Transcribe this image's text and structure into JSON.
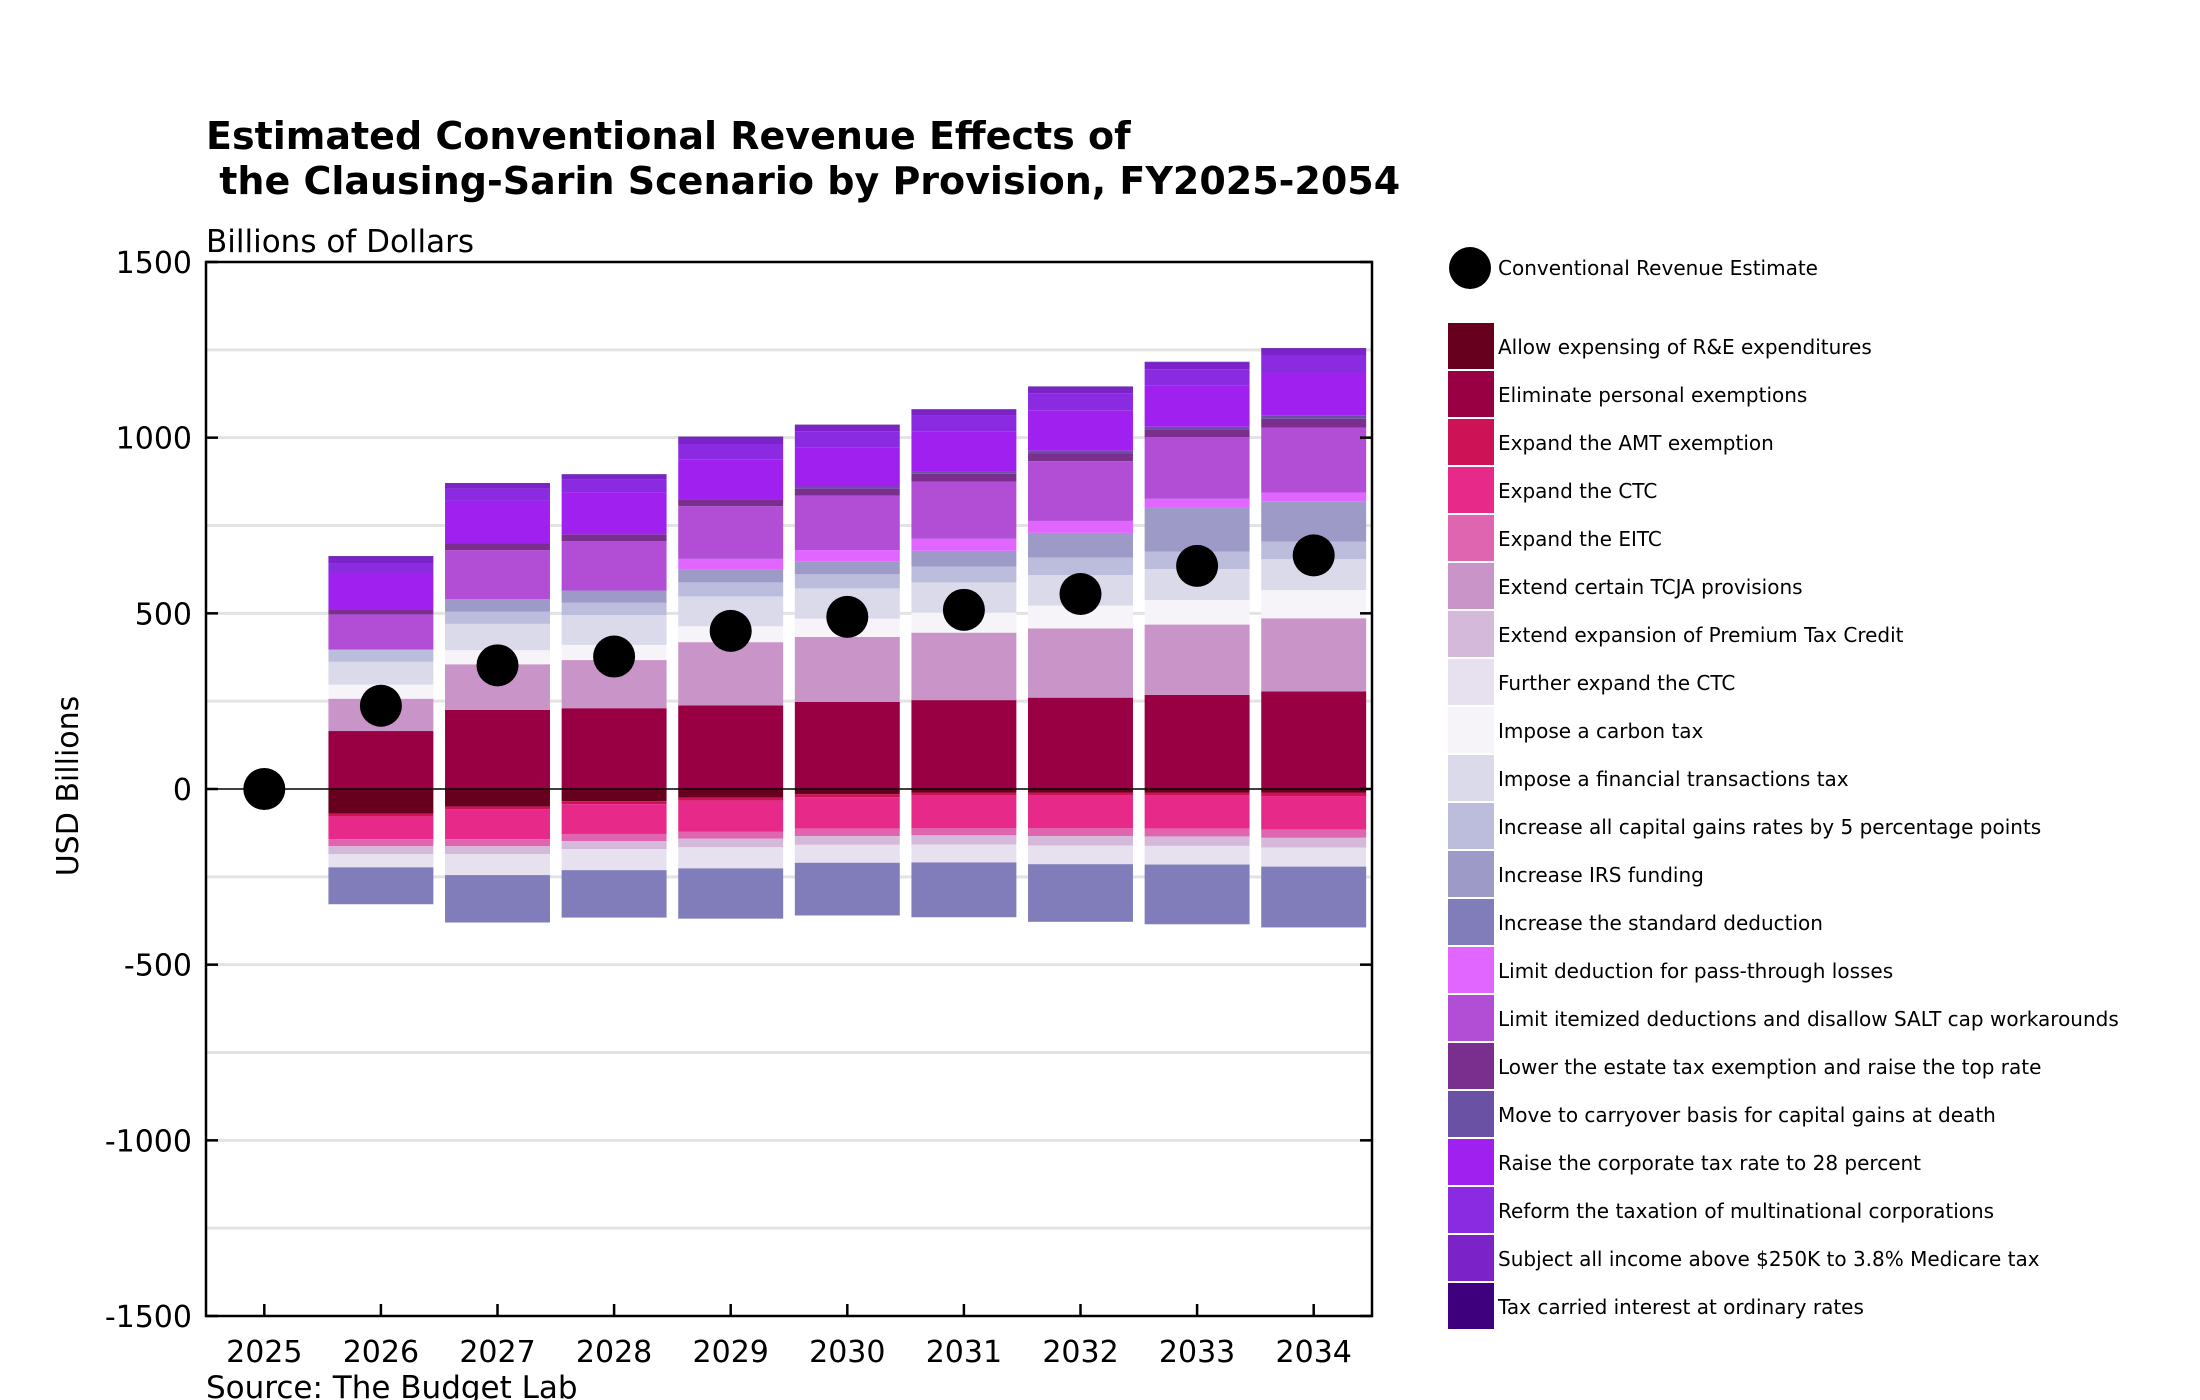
{
  "chart_data": {
    "type": "bar",
    "title_line1": "Estimated Conventional Revenue Effects of",
    "title_line2": " the Clausing-Sarin Scenario by Provision, FY2025-2054",
    "subtitle": "Billions of Dollars",
    "ylabel": "USD Billions",
    "source": "Source: The Budget Lab",
    "ylim": [
      -1500,
      1500
    ],
    "yticks": [
      -1500,
      -1000,
      -500,
      0,
      500,
      1000,
      1500
    ],
    "ytick_labels": [
      "-1500",
      "-1000",
      "-500",
      "0",
      "500",
      "1000",
      "1500"
    ],
    "grid": true,
    "legend_position": "right",
    "categories": [
      "2025",
      "2026",
      "2027",
      "2028",
      "2029",
      "2030",
      "2031",
      "2032",
      "2033",
      "2034"
    ],
    "estimate_label": "Conventional Revenue Estimate",
    "estimate": [
      0,
      237,
      352,
      377,
      450,
      490,
      510,
      555,
      635,
      665
    ],
    "series": [
      {
        "name": "Allow expensing of R&E expenditures",
        "color": "#67001f",
        "values": [
          0,
          -70,
          -50,
          -35,
          -25,
          -15,
          -10,
          -10,
          -10,
          -10
        ]
      },
      {
        "name": "Eliminate personal exemptions",
        "color": "#980043",
        "values": [
          0,
          165,
          225,
          230,
          238,
          248,
          253,
          260,
          268,
          278
        ]
      },
      {
        "name": "Expand the AMT exemption",
        "color": "#ce1256",
        "values": [
          0,
          -8,
          -8,
          -8,
          -8,
          -8,
          -9,
          -9,
          -9,
          -10
        ]
      },
      {
        "name": "Expand the CTC",
        "color": "#e7298a",
        "values": [
          0,
          -65,
          -85,
          -85,
          -88,
          -90,
          -92,
          -93,
          -94,
          -96
        ]
      },
      {
        "name": "Expand the EITC",
        "color": "#df65b0",
        "values": [
          0,
          -20,
          -20,
          -20,
          -20,
          -21,
          -21,
          -22,
          -22,
          -23
        ]
      },
      {
        "name": "Extend certain TCJA provisions",
        "color": "#c994c7",
        "values": [
          0,
          92,
          130,
          137,
          180,
          185,
          192,
          197,
          200,
          208
        ]
      },
      {
        "name": "Extend expansion of Premium Tax Credit",
        "color": "#d4b9da",
        "values": [
          0,
          -22,
          -22,
          -23,
          -25,
          -25,
          -26,
          -27,
          -27,
          -28
        ]
      },
      {
        "name": "Further expand the CTC",
        "color": "#e7e1ef",
        "values": [
          0,
          -38,
          -60,
          -60,
          -60,
          -51,
          -51,
          -53,
          -53,
          -54
        ]
      },
      {
        "name": "Impose a carbon tax",
        "color": "#f7f4f9",
        "values": [
          0,
          40,
          40,
          43,
          45,
          52,
          57,
          65,
          70,
          80
        ]
      },
      {
        "name": "Impose a financial transactions tax",
        "color": "#dadaeb",
        "values": [
          0,
          65,
          75,
          85,
          85,
          86,
          86,
          87,
          88,
          88
        ]
      },
      {
        "name": "Increase all capital gains rates by 5 percentage points",
        "color": "#bcbddc",
        "values": [
          0,
          35,
          35,
          35,
          40,
          40,
          45,
          50,
          50,
          50
        ]
      },
      {
        "name": "Increase IRS funding",
        "color": "#9e9ac8",
        "values": [
          0,
          0,
          35,
          35,
          37,
          37,
          45,
          70,
          125,
          115
        ]
      },
      {
        "name": "Increase the standard deduction",
        "color": "#807dba",
        "values": [
          0,
          -105,
          -135,
          -135,
          -143,
          -150,
          -156,
          -164,
          -170,
          -173
        ]
      },
      {
        "name": "Limit deduction for pass-through losses",
        "color": "#e066ff",
        "values": [
          0,
          0,
          0,
          0,
          30,
          32,
          34,
          34,
          25,
          25
        ]
      },
      {
        "name": "Limit itemized deductions and disallow SALT cap workarounds",
        "color": "#b24ed6",
        "values": [
          0,
          100,
          140,
          140,
          150,
          155,
          163,
          170,
          175,
          185
        ]
      },
      {
        "name": "Lower the estate tax exemption and raise the top rate",
        "color": "#7a2e8e",
        "values": [
          0,
          15,
          20,
          20,
          20,
          20,
          22,
          22,
          22,
          25
        ]
      },
      {
        "name": "Move to carryover basis for capital gains at death",
        "color": "#6a51a3",
        "values": [
          0,
          0,
          0,
          0,
          0,
          6,
          8,
          8,
          8,
          10
        ]
      },
      {
        "name": "Raise the corporate tax rate to 28 percent",
        "color": "#a020f0",
        "values": [
          0,
          100,
          120,
          120,
          112,
          112,
          112,
          115,
          117,
          120
        ]
      },
      {
        "name": "Reform the taxation of multinational corporations",
        "color": "#8a2be2",
        "values": [
          0,
          30,
          35,
          35,
          45,
          45,
          45,
          47,
          47,
          50
        ]
      },
      {
        "name": "Subject all income above $250K to 3.8% Medicare tax",
        "color": "#7b22c9",
        "values": [
          0,
          20,
          15,
          15,
          20,
          18,
          18,
          20,
          20,
          20
        ]
      },
      {
        "name": "Tax carried interest at ordinary rates",
        "color": "#3f007d",
        "values": [
          0,
          1,
          1,
          1,
          1,
          1,
          1,
          1,
          1,
          1
        ]
      }
    ]
  }
}
